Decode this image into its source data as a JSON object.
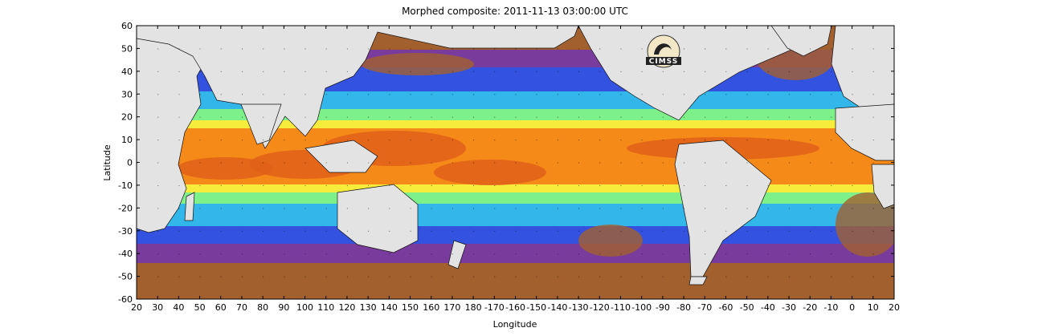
{
  "title": "Morphed composite: 2011-11-13 03:00:00 UTC",
  "xlabel": "Longitude",
  "ylabel": "Latitude",
  "logo_text": "CIMSS",
  "x_ticks": [
    "20",
    "30",
    "40",
    "50",
    "60",
    "70",
    "80",
    "90",
    "100",
    "110",
    "120",
    "130",
    "140",
    "150",
    "160",
    "170",
    "180",
    "-170",
    "-160",
    "-150",
    "-140",
    "-130",
    "-120",
    "-110",
    "-100",
    "-90",
    "-80",
    "-70",
    "-60",
    "-50",
    "-40",
    "-30",
    "-20",
    "-10",
    "0",
    "10",
    "20"
  ],
  "y_ticks": [
    "60",
    "50",
    "40",
    "30",
    "20",
    "10",
    "0",
    "-10",
    "-20",
    "-30",
    "-40",
    "-50",
    "-60"
  ],
  "colors": {
    "land": "#e3e3e3",
    "dry": "#a2602e",
    "very_low": "#7a3c9c",
    "low": "#3352e0",
    "mid_low": "#33b7ea",
    "mid": "#7ef08a",
    "mid_high": "#f6ec3c",
    "high": "#f58a18",
    "peak": "#e0601a"
  }
}
